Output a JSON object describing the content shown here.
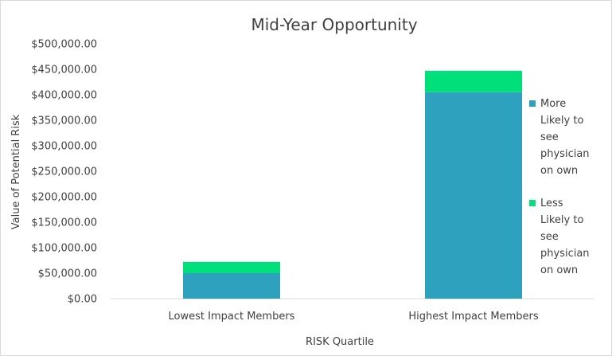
{
  "chart_data": {
    "type": "bar",
    "stacked": true,
    "title": "Mid-Year Opportunity",
    "xlabel": "RISK Quartile",
    "ylabel": "Value of Potential Risk",
    "categories": [
      "Lowest Impact Members",
      "Highest Impact Members"
    ],
    "series": [
      {
        "name": "More Likely to see physician on own",
        "color": "#2ea1bf",
        "values": [
          50000,
          405000
        ]
      },
      {
        "name": "Less Likely to see physician on own",
        "color": "#00e07a",
        "values": [
          22000,
          42000
        ]
      }
    ],
    "ylim": [
      0,
      500000
    ],
    "yticks": [
      "$0.00",
      "$50,000.00",
      "$100,000.00",
      "$150,000.00",
      "$200,000.00",
      "$250,000.00",
      "$300,000.00",
      "$350,000.00",
      "$400,000.00",
      "$450,000.00",
      "$500,000.00"
    ],
    "legend_position": "right",
    "grid": false
  }
}
